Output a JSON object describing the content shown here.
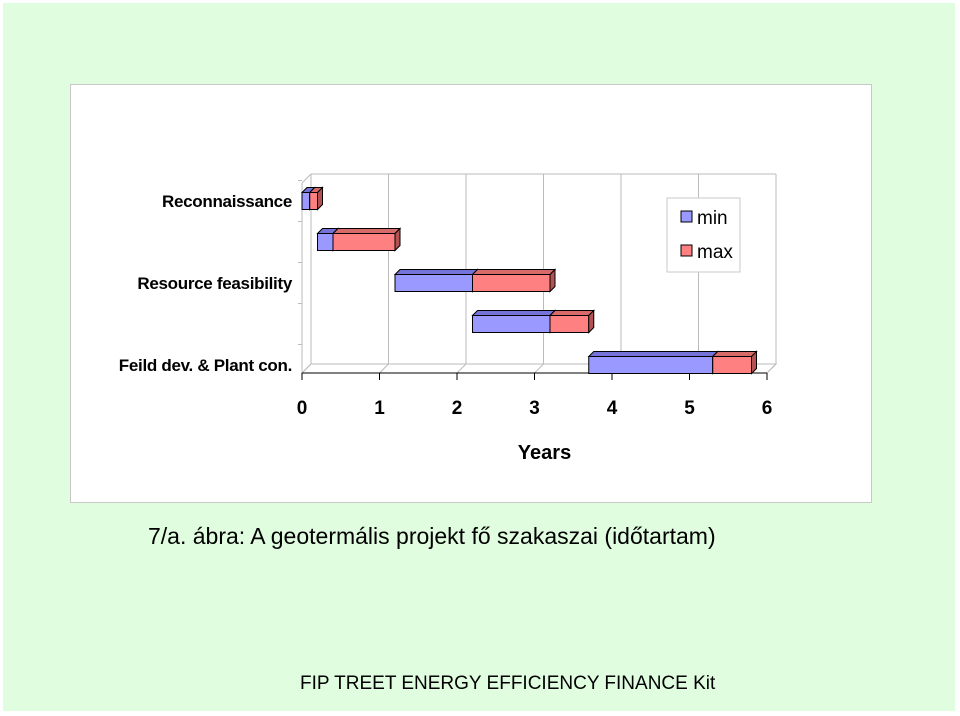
{
  "chart_data": {
    "type": "bar",
    "orientation": "horizontal",
    "stacked": true,
    "categories": [
      "Reconnaissance",
      "",
      "Resource feasibility",
      "",
      "Feild dev. & Plant con."
    ],
    "series": [
      {
        "name": "min",
        "values": [
          0.1,
          0.2,
          1.0,
          1.0,
          1.6
        ],
        "color": "#9999ff"
      },
      {
        "name": "max",
        "values": [
          0.1,
          0.8,
          1.0,
          0.5,
          0.5
        ],
        "color": "#ff8080"
      }
    ],
    "offsets": [
      0.0,
      0.2,
      1.2,
      2.2,
      3.7
    ],
    "xlabel": "Years",
    "xlim": [
      0,
      6
    ],
    "xticks": [
      "0",
      "1",
      "2",
      "3",
      "4",
      "5",
      "6"
    ],
    "grid": true,
    "legend_position": "top-right"
  },
  "caption": "7/a. ábra: A geotermális projekt fő szakaszai (időtartam)",
  "footer": "FIP TREET ENERGY EFFICIENCY FINANCE Kit"
}
